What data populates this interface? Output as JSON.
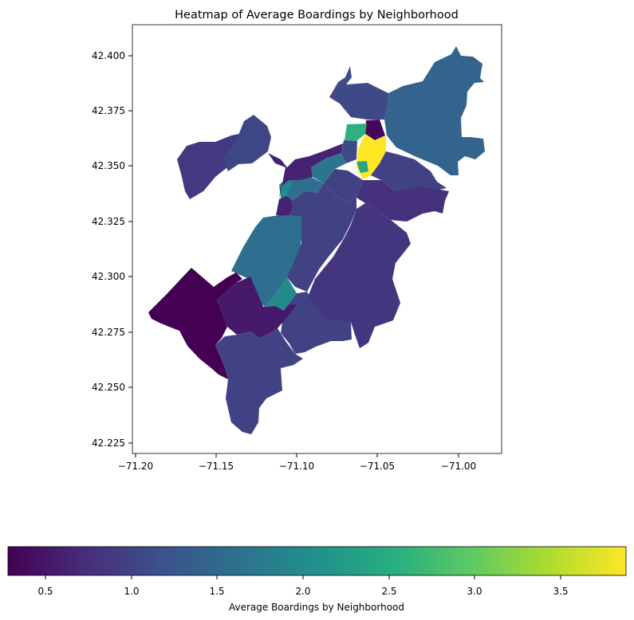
{
  "chart_data": {
    "type": "heatmap",
    "title": "Heatmap of Average Boardings by Neighborhood",
    "xlabel": "",
    "ylabel": "",
    "x_ticks": [
      "−71.20",
      "−71.15",
      "−71.10",
      "−71.05",
      "−71.00"
    ],
    "y_ticks": [
      "42.225",
      "42.250",
      "42.275",
      "42.300",
      "42.325",
      "42.350",
      "42.375",
      "42.400"
    ],
    "xlim": [
      -71.2,
      -70.975
    ],
    "ylim": [
      42.22,
      42.415
    ],
    "colormap": "viridis",
    "colorbar": {
      "label": "Average Boardings by Neighborhood",
      "orientation": "horizontal",
      "range": [
        0.3,
        3.9
      ],
      "ticks": [
        "0.5",
        "1.0",
        "1.5",
        "2.0",
        "2.5",
        "3.0",
        "3.5"
      ]
    },
    "regions": [
      {
        "value": 1.45
      },
      {
        "value": 1.1
      },
      {
        "value": 0.35
      },
      {
        "value": 2.6
      },
      {
        "value": 3.9
      },
      {
        "value": 2.4
      },
      {
        "value": 1.1
      },
      {
        "value": 1.0
      },
      {
        "value": 0.8
      },
      {
        "value": 1.0
      },
      {
        "value": 1.7
      },
      {
        "value": 1.6
      },
      {
        "value": 0.9
      },
      {
        "value": 1.05
      },
      {
        "value": 2.0
      },
      {
        "value": 1.6
      },
      {
        "value": 1.0
      },
      {
        "value": 0.85
      },
      {
        "value": 1.0
      },
      {
        "value": 0.55
      },
      {
        "value": 1.0
      },
      {
        "value": 2.0
      },
      {
        "value": 0.3
      },
      {
        "value": 0.65
      },
      {
        "value": 0.65
      }
    ]
  }
}
